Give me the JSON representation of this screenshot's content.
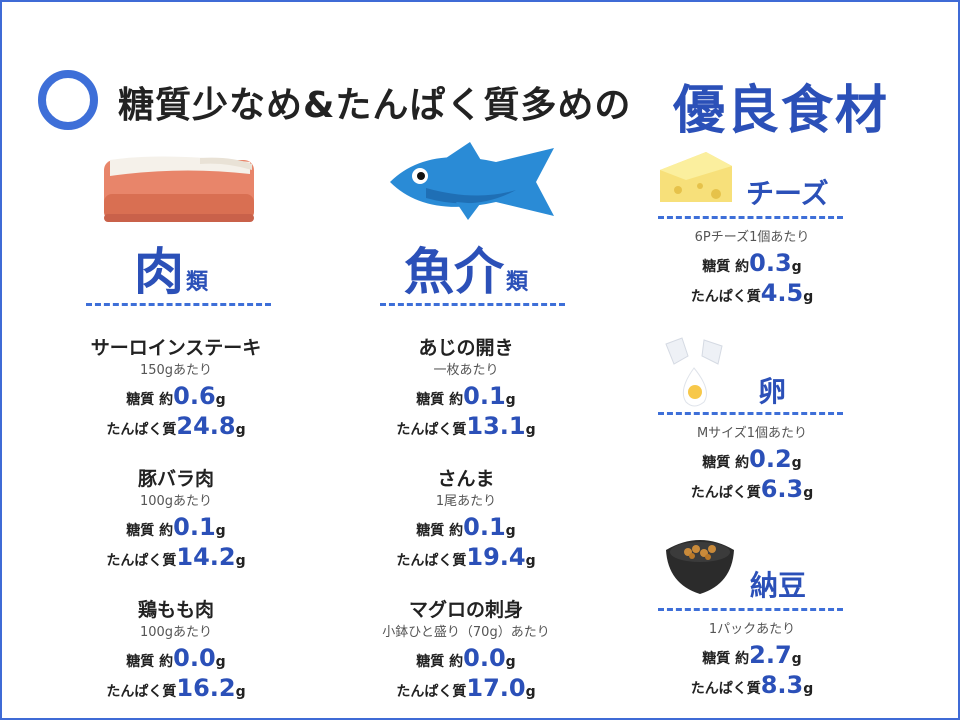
{
  "header": {
    "title": "糖質少なめ&たんぱく質多めの",
    "title_emphasis": "優良食材"
  },
  "labels": {
    "carb_prefix": "糖質 約",
    "protein_prefix": "たんぱく質",
    "unit": "g"
  },
  "colors": {
    "accent": "#2b50b8",
    "circle": "#3e6fd8"
  },
  "categories": {
    "meat": {
      "main": "肉",
      "sub": "類",
      "icon": "meat-icon"
    },
    "fish": {
      "main": "魚介",
      "sub": "類",
      "icon": "fish-icon"
    },
    "cheese": {
      "main": "チーズ",
      "icon": "cheese-icon"
    },
    "egg": {
      "main": "卵",
      "icon": "egg-icon"
    },
    "natto": {
      "main": "納豆",
      "icon": "natto-icon"
    }
  },
  "meat_items": [
    {
      "name": "サーロインステーキ",
      "portion": "150gあたり",
      "carbs": "0.6",
      "protein": "24.8"
    },
    {
      "name": "豚バラ肉",
      "portion": "100gあたり",
      "carbs": "0.1",
      "protein": "14.2"
    },
    {
      "name": "鶏もも肉",
      "portion": "100gあたり",
      "carbs": "0.0",
      "protein": "16.2"
    }
  ],
  "fish_items": [
    {
      "name": "あじの開き",
      "portion": "一枚あたり",
      "carbs": "0.1",
      "protein": "13.1"
    },
    {
      "name": "さんま",
      "portion": "1尾あたり",
      "carbs": "0.1",
      "protein": "19.4"
    },
    {
      "name": "マグロの刺身",
      "portion": "小鉢ひと盛り（70g）あたり",
      "carbs": "0.0",
      "protein": "17.0"
    }
  ],
  "side_items": {
    "cheese": {
      "portion": "6Pチーズ1個あたり",
      "carbs": "0.3",
      "protein": "4.5"
    },
    "egg": {
      "portion": "Mサイズ1個あたり",
      "carbs": "0.2",
      "protein": "6.3"
    },
    "natto": {
      "portion": "1パックあたり",
      "carbs": "2.7",
      "protein": "8.3"
    }
  }
}
